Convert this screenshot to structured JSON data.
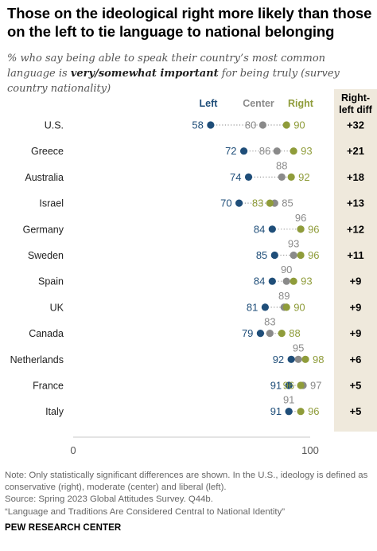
{
  "title": "Those on the ideological right more likely than those on the left to tie language to national belonging",
  "subtitle_pre": "% who say being able to speak their country’s most common language is ",
  "subtitle_bold": "very/somewhat important",
  "subtitle_post": " for being truly (survey country nationality)",
  "diff_header": "Right-left diff",
  "notes": {
    "note": "Note: Only statistically significant differences are shown. In the U.S., ideology is defined as conservative (right), moderate (center) and liberal (left).",
    "source": "Source: Spring 2023 Global Attitudes Survey. Q44b.",
    "report": "“Language and Traditions Are Considered Central to National Identity”"
  },
  "org": "PEW RESEARCH CENTER",
  "colors": {
    "left": "#1f4e79",
    "center": "#8a8a8a",
    "right": "#8f9c3a",
    "diff_bg": "#efe9dc"
  },
  "chart_data": {
    "type": "scatter",
    "variant": "dot plot",
    "xlim": [
      0,
      100
    ],
    "x_ticks": [
      "0",
      "100"
    ],
    "series_names": {
      "left": "Left",
      "center": "Center",
      "right": "Right"
    },
    "rows": [
      {
        "country": "U.S.",
        "left": 58,
        "center": 80,
        "right": 90,
        "diff": "+32"
      },
      {
        "country": "Greece",
        "left": 72,
        "center": 86,
        "right": 93,
        "diff": "+21"
      },
      {
        "country": "Australia",
        "left": 74,
        "center": 88,
        "right": 92,
        "diff": "+18"
      },
      {
        "country": "Israel",
        "left": 70,
        "center": 85,
        "right": 83,
        "diff": "+13"
      },
      {
        "country": "Germany",
        "left": 84,
        "center": 96,
        "right": 96,
        "diff": "+12"
      },
      {
        "country": "Sweden",
        "left": 85,
        "center": 93,
        "right": 96,
        "diff": "+11"
      },
      {
        "country": "Spain",
        "left": 84,
        "center": 90,
        "right": 93,
        "diff": "+9"
      },
      {
        "country": "UK",
        "left": 81,
        "center": 89,
        "right": 90,
        "diff": "+9"
      },
      {
        "country": "Canada",
        "left": 79,
        "center": 83,
        "right": 88,
        "diff": "+9"
      },
      {
        "country": "Netherlands",
        "left": 92,
        "center": 95,
        "right": 98,
        "diff": "+6"
      },
      {
        "country": "France",
        "left": 91,
        "center": 97,
        "right": 96,
        "diff": "+5"
      },
      {
        "country": "Italy",
        "left": 91,
        "center": 91,
        "right": 96,
        "diff": "+5"
      }
    ]
  }
}
